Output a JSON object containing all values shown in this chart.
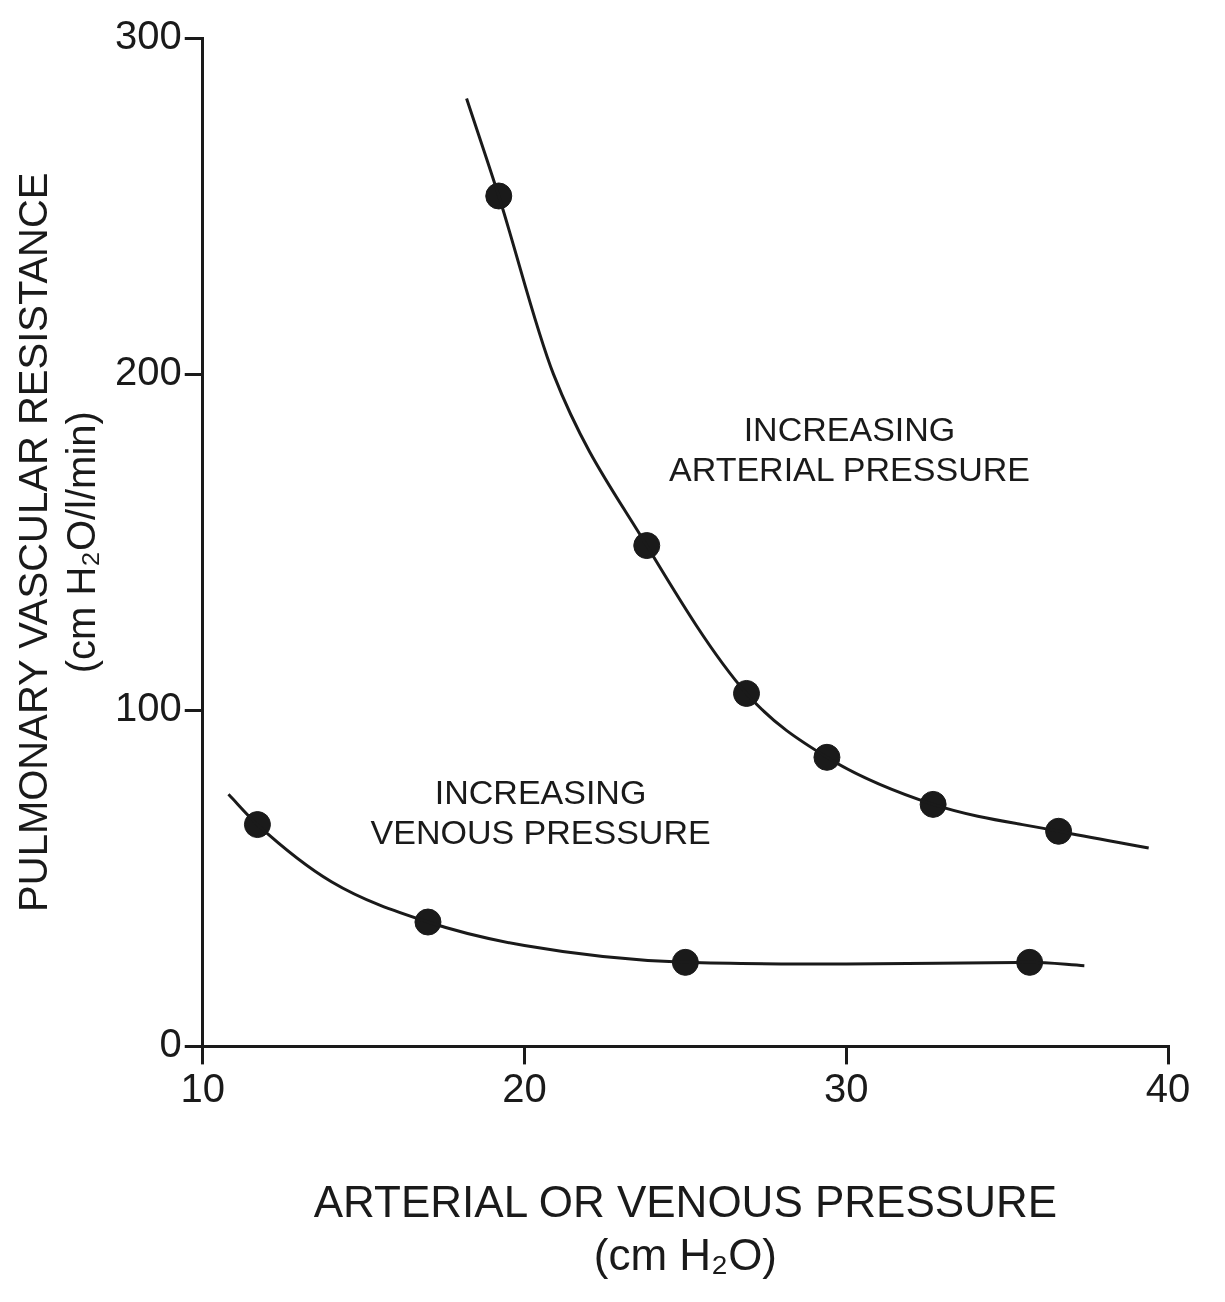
{
  "chart_data": {
    "type": "scatter",
    "xlabel": "ARTERIAL OR VENOUS PRESSURE\n(cm H₂O)",
    "ylabel": "PULMONARY VASCULAR RESISTANCE\n(cm H₂O/l/min)",
    "xlim": [
      10,
      40
    ],
    "xticks": [
      10,
      20,
      30,
      40
    ],
    "ylim": [
      0,
      300
    ],
    "yticks": [
      0,
      100,
      200,
      300
    ],
    "grid": false,
    "legend": false,
    "series": [
      {
        "type": "line",
        "marker": "none",
        "color": "#1a1a1a",
        "x": [
          18.2,
          19.2,
          20.9,
          23.8,
          26.9,
          29.4,
          32.7,
          36.6,
          39.4
        ],
        "values": [
          282,
          253,
          200,
          149,
          105,
          86,
          72,
          64,
          59
        ]
      },
      {
        "type": "scatter",
        "marker": "circle",
        "color": "#1a1a1a",
        "x": [
          19.2,
          23.8,
          26.9,
          29.4,
          32.7,
          36.6
        ],
        "values": [
          253,
          149,
          105,
          86,
          72,
          64
        ]
      },
      {
        "type": "line",
        "marker": "none",
        "color": "#1a1a1a",
        "x": [
          10.8,
          11.7,
          14,
          17,
          20,
          25,
          30,
          35.7,
          37.4
        ],
        "values": [
          75,
          66,
          49,
          37,
          30,
          25,
          24.5,
          25,
          24
        ]
      },
      {
        "type": "scatter",
        "marker": "circle",
        "color": "#1a1a1a",
        "x": [
          11.7,
          17,
          25,
          35.7
        ],
        "values": [
          66,
          37,
          25,
          25
        ]
      }
    ],
    "annotations": [
      "INCREASING\nARTERIAL PRESSURE",
      "INCREASING\nVENOUS PRESSURE"
    ]
  }
}
